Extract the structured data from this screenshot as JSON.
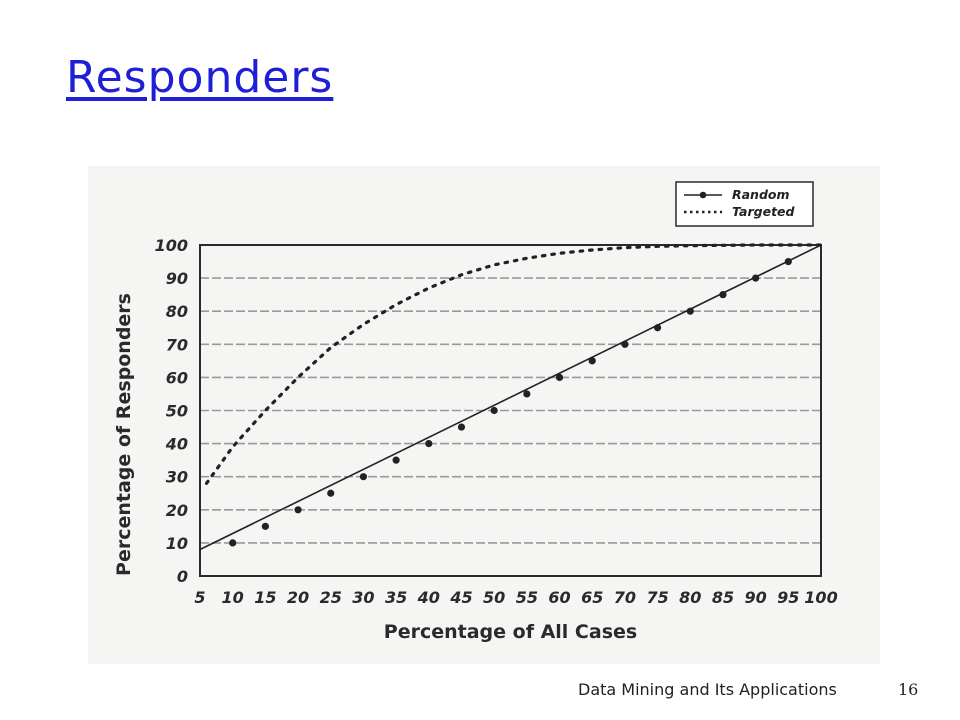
{
  "slide": {
    "title": "Responders",
    "footer": "Data Mining and Its Applications",
    "page_number": "16"
  },
  "chart_data": {
    "type": "line",
    "xlabel": "Percentage of All Cases",
    "ylabel": "Percentage of Responders",
    "xlim": [
      5,
      100
    ],
    "ylim": [
      0,
      100
    ],
    "x_ticks": [
      "5",
      "10",
      "15",
      "20",
      "25",
      "30",
      "35",
      "40",
      "45",
      "50",
      "55",
      "60",
      "65",
      "70",
      "75",
      "80",
      "85",
      "90",
      "95",
      "100"
    ],
    "y_ticks": [
      "0",
      "10",
      "20",
      "30",
      "40",
      "50",
      "60",
      "70",
      "80",
      "90",
      "100"
    ],
    "grid": "horizontal dashed",
    "legend_position": "top-right",
    "series": [
      {
        "name": "Random",
        "style": "solid line with dot markers",
        "color": "#222222",
        "x": [
          5,
          100
        ],
        "y": [
          8,
          100
        ],
        "markers": [
          [
            10,
            10
          ],
          [
            15,
            15
          ],
          [
            20,
            20
          ],
          [
            25,
            25
          ],
          [
            30,
            30
          ],
          [
            35,
            35
          ],
          [
            40,
            40
          ],
          [
            45,
            45
          ],
          [
            50,
            50
          ],
          [
            55,
            55
          ],
          [
            60,
            60
          ],
          [
            65,
            65
          ],
          [
            70,
            70
          ],
          [
            75,
            75
          ],
          [
            80,
            80
          ],
          [
            85,
            85
          ],
          [
            90,
            90
          ],
          [
            95,
            95
          ]
        ]
      },
      {
        "name": "Targeted",
        "style": "dotted",
        "color": "#222222",
        "x": [
          6,
          10,
          15,
          20,
          25,
          30,
          35,
          40,
          45,
          50,
          55,
          60,
          65,
          70,
          75,
          80,
          85,
          90,
          95,
          100
        ],
        "y": [
          28,
          39,
          50,
          60,
          69,
          76,
          82,
          87,
          91,
          94,
          96,
          97.5,
          98.5,
          99.2,
          99.6,
          99.8,
          99.9,
          100,
          100,
          100
        ]
      }
    ]
  }
}
